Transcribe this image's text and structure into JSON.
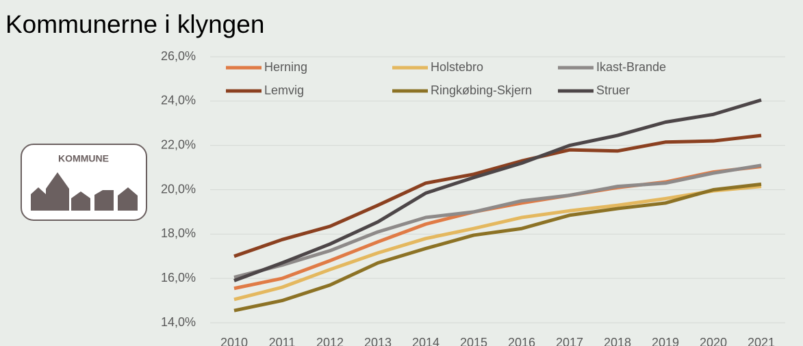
{
  "logo": {
    "label": "KOMMUNE"
  },
  "chart_data": {
    "type": "line",
    "title": "Kommunerne i klyngen",
    "categories": [
      "2010",
      "2011",
      "2012",
      "2013",
      "2014",
      "2015",
      "2016",
      "2017",
      "2018",
      "2019",
      "2020",
      "2021"
    ],
    "series": [
      {
        "name": "Herning",
        "color": "#e07b46",
        "values": [
          15.55,
          16.0,
          16.8,
          17.65,
          18.45,
          19.0,
          19.4,
          19.75,
          20.1,
          20.35,
          20.8,
          21.05
        ]
      },
      {
        "name": "Holstebro",
        "color": "#e4b85f",
        "values": [
          15.05,
          15.6,
          16.4,
          17.15,
          17.8,
          18.25,
          18.75,
          19.05,
          19.3,
          19.6,
          19.95,
          20.15
        ]
      },
      {
        "name": "Ikast-Brande",
        "color": "#8e8a89",
        "values": [
          16.05,
          16.6,
          17.25,
          18.1,
          18.75,
          19.0,
          19.5,
          19.75,
          20.15,
          20.3,
          20.75,
          21.1
        ]
      },
      {
        "name": "Lemvig",
        "color": "#8b4020",
        "values": [
          17.0,
          17.75,
          18.35,
          19.3,
          20.3,
          20.7,
          21.3,
          21.8,
          21.75,
          22.15,
          22.2,
          22.45
        ]
      },
      {
        "name": "Ringkøbing-Skjern",
        "color": "#8c7225",
        "values": [
          14.55,
          15.0,
          15.7,
          16.7,
          17.35,
          17.95,
          18.25,
          18.85,
          19.15,
          19.4,
          20.0,
          20.25
        ]
      },
      {
        "name": "Struer",
        "color": "#4d4648",
        "values": [
          15.9,
          16.7,
          17.55,
          18.55,
          19.85,
          20.55,
          21.2,
          22.0,
          22.45,
          23.05,
          23.4,
          24.05
        ]
      }
    ],
    "ylim": [
      14,
      26
    ],
    "yticks": [
      {
        "value": 14,
        "label": "14,0%"
      },
      {
        "value": 16,
        "label": "16,0%"
      },
      {
        "value": 18,
        "label": "18,0%"
      },
      {
        "value": 20,
        "label": "20,0%"
      },
      {
        "value": 22,
        "label": "22,0%"
      },
      {
        "value": 24,
        "label": "24,0%"
      },
      {
        "value": 26,
        "label": "26,0%"
      }
    ],
    "grid": true,
    "legend": "top"
  }
}
